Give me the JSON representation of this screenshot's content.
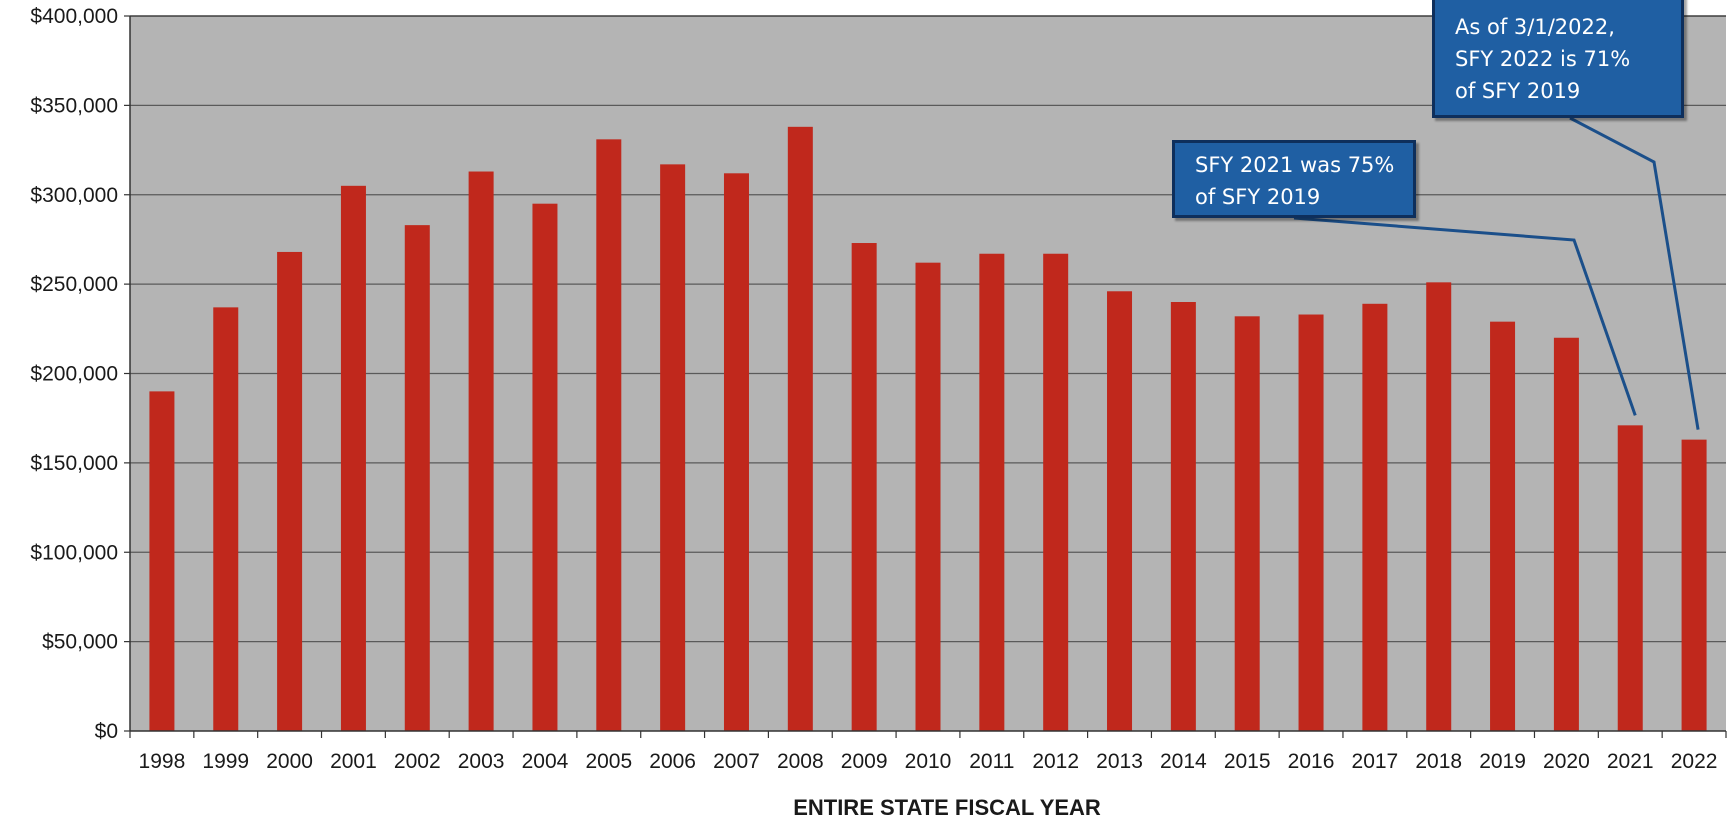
{
  "chart_data": {
    "type": "bar",
    "xlabel": "ENTIRE STATE FISCAL YEAR",
    "ylabel": "",
    "ylim": [
      0,
      400000
    ],
    "yticks": [
      0,
      50000,
      100000,
      150000,
      200000,
      250000,
      300000,
      350000,
      400000
    ],
    "ytick_labels": [
      "$0",
      "$50,000",
      "$100,000",
      "$150,000",
      "$200,000",
      "$250,000",
      "$300,000",
      "$350,000",
      "$400,000"
    ],
    "grid": true,
    "categories": [
      "1998",
      "1999",
      "2000",
      "2001",
      "2002",
      "2003",
      "2004",
      "2005",
      "2006",
      "2007",
      "2008",
      "2009",
      "2010",
      "2011",
      "2012",
      "2013",
      "2014",
      "2015",
      "2016",
      "2017",
      "2018",
      "2019",
      "2020",
      "2021",
      "2022"
    ],
    "values": [
      190000,
      237000,
      268000,
      305000,
      283000,
      313000,
      295000,
      331000,
      317000,
      312000,
      338000,
      273000,
      262000,
      267000,
      267000,
      246000,
      240000,
      232000,
      233000,
      239000,
      251000,
      229000,
      220000,
      171000,
      163000
    ],
    "colors": {
      "bar": "#c0281c",
      "plot_background": "#b4b4b4",
      "gridline": "#5a5a5a",
      "callout_fill": "#1f5fa3",
      "callout_border": "#0e2f5c",
      "leader_line": "#1b4f8a"
    },
    "annotations": [
      {
        "target": "2021",
        "lines": [
          "SFY 2021 was 75%",
          "of SFY 2019"
        ]
      },
      {
        "target": "2022",
        "lines": [
          "As of 3/1/2022,",
          "SFY 2022 is 71%",
          "of SFY 2019"
        ]
      }
    ]
  }
}
